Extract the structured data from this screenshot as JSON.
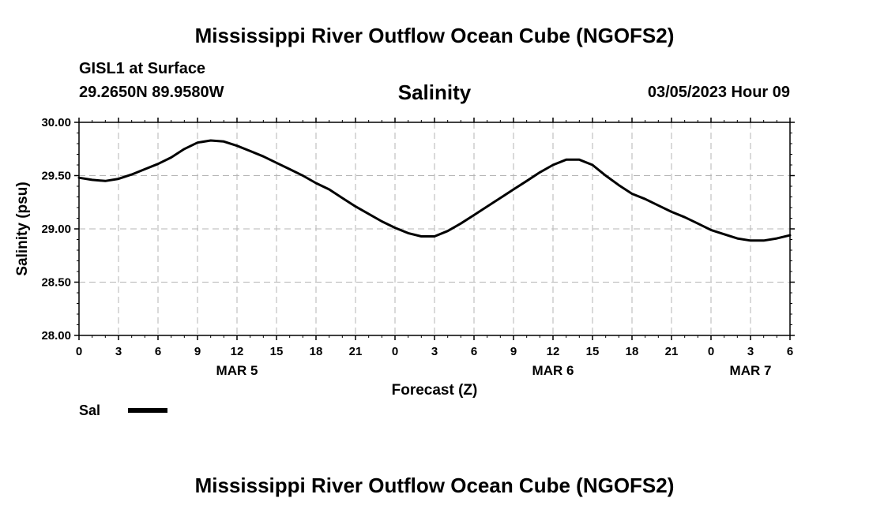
{
  "header": {
    "title": "Mississippi River Outflow Ocean Cube (NGOFS2)",
    "station": "GISL1 at Surface",
    "coords": "29.2650N  89.9580W",
    "chart_title": "Salinity",
    "datetime": "03/05/2023 Hour 09"
  },
  "footer": {
    "title": "Mississippi River Outflow Ocean Cube (NGOFS2)"
  },
  "legend": {
    "label": "Sal",
    "color": "#000000"
  },
  "chart_data": {
    "type": "line",
    "title": "Salinity",
    "xlabel": "Forecast (Z)",
    "ylabel": "Salinity (psu)",
    "ylim": [
      28.0,
      30.0
    ],
    "yticks": [
      "28.00",
      "28.50",
      "29.00",
      "29.50",
      "30.00"
    ],
    "xlim_hours": [
      0,
      54
    ],
    "xticks": [
      "0",
      "3",
      "6",
      "9",
      "12",
      "15",
      "18",
      "21",
      "0",
      "3",
      "6",
      "9",
      "12",
      "15",
      "18",
      "21",
      "0",
      "3",
      "6"
    ],
    "day_labels": [
      {
        "label": "MAR 5",
        "hour": 12
      },
      {
        "label": "MAR 6",
        "hour": 36
      },
      {
        "label": "MAR 7",
        "hour": 51
      }
    ],
    "grid": true,
    "legend_position": "bottom-left",
    "series": [
      {
        "name": "Sal",
        "color": "#000000",
        "x": [
          0,
          1,
          2,
          3,
          4,
          5,
          6,
          7,
          8,
          9,
          10,
          11,
          12,
          13,
          14,
          15,
          16,
          17,
          18,
          19,
          20,
          21,
          22,
          23,
          24,
          25,
          26,
          27,
          28,
          29,
          30,
          31,
          32,
          33,
          34,
          35,
          36,
          37,
          38,
          39,
          40,
          41,
          42,
          43,
          44,
          45,
          46,
          47,
          48,
          49,
          50,
          51,
          52,
          53,
          54
        ],
        "values": [
          29.48,
          29.46,
          29.45,
          29.47,
          29.51,
          29.56,
          29.61,
          29.67,
          29.75,
          29.81,
          29.83,
          29.82,
          29.78,
          29.73,
          29.68,
          29.62,
          29.56,
          29.5,
          29.43,
          29.37,
          29.29,
          29.21,
          29.14,
          29.07,
          29.01,
          28.96,
          28.93,
          28.93,
          28.98,
          29.05,
          29.13,
          29.21,
          29.29,
          29.37,
          29.45,
          29.53,
          29.6,
          29.65,
          29.65,
          29.6,
          29.5,
          29.41,
          29.33,
          29.28,
          29.22,
          29.16,
          29.11,
          29.05,
          28.99,
          28.95,
          28.91,
          28.89,
          28.89,
          28.91,
          28.94
        ]
      }
    ]
  }
}
